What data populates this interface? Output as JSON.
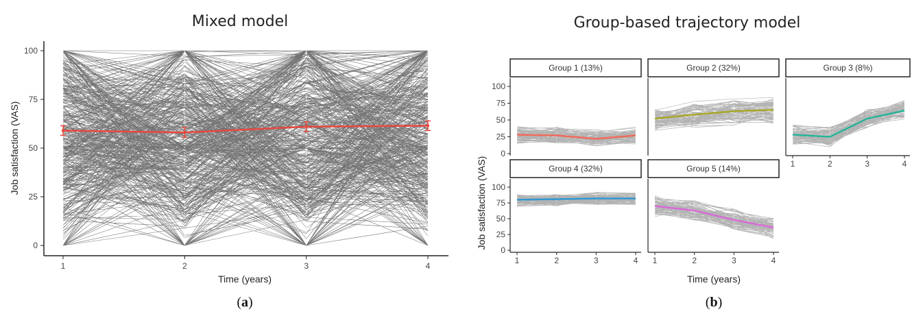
{
  "figure": {
    "caption_a": "a",
    "caption_b": "b"
  },
  "chart_data": [
    {
      "type": "line",
      "title": "Mixed model",
      "xlabel": "Time (years)",
      "ylabel": "Job satisfaction (VAS)",
      "x": [
        1,
        2,
        3,
        4
      ],
      "xticks": [
        "1",
        "2",
        "3",
        "4"
      ],
      "ylim": [
        0,
        100
      ],
      "yticks": [
        "0",
        "25",
        "50",
        "75",
        "100"
      ],
      "mean_series": {
        "values": [
          59,
          58,
          61,
          61.5
        ],
        "color": "#e8473e"
      },
      "individual_line_color": "#000000",
      "grid": false
    },
    {
      "type": "line",
      "title": "Group-based trajectory model",
      "xlabel": "Time (years)",
      "ylabel": "Job satisfaction (VAS)",
      "x": [
        1,
        2,
        3,
        4
      ],
      "xticks": [
        "1",
        "2",
        "3",
        "4"
      ],
      "ylim": [
        0,
        100
      ],
      "yticks": [
        "0",
        "25",
        "50",
        "75",
        "100"
      ],
      "individual_line_color": "#9a9a9a",
      "panels": [
        {
          "label": "Group 1 (13%)",
          "color": "#f06a5a",
          "values": [
            28,
            27,
            22,
            27
          ]
        },
        {
          "label": "Group 2 (32%)",
          "color": "#a8a82a",
          "values": [
            52,
            58,
            63,
            65
          ]
        },
        {
          "label": "Group 3 (8%)",
          "color": "#27b49a",
          "values": [
            28,
            25,
            52,
            64
          ]
        },
        {
          "label": "Group 4 (32%)",
          "color": "#2f98d2",
          "values": [
            80,
            81,
            82,
            82
          ]
        },
        {
          "label": "Group 5 (14%)",
          "color": "#d96ad8",
          "values": [
            70,
            63,
            48,
            36
          ]
        }
      ]
    }
  ]
}
